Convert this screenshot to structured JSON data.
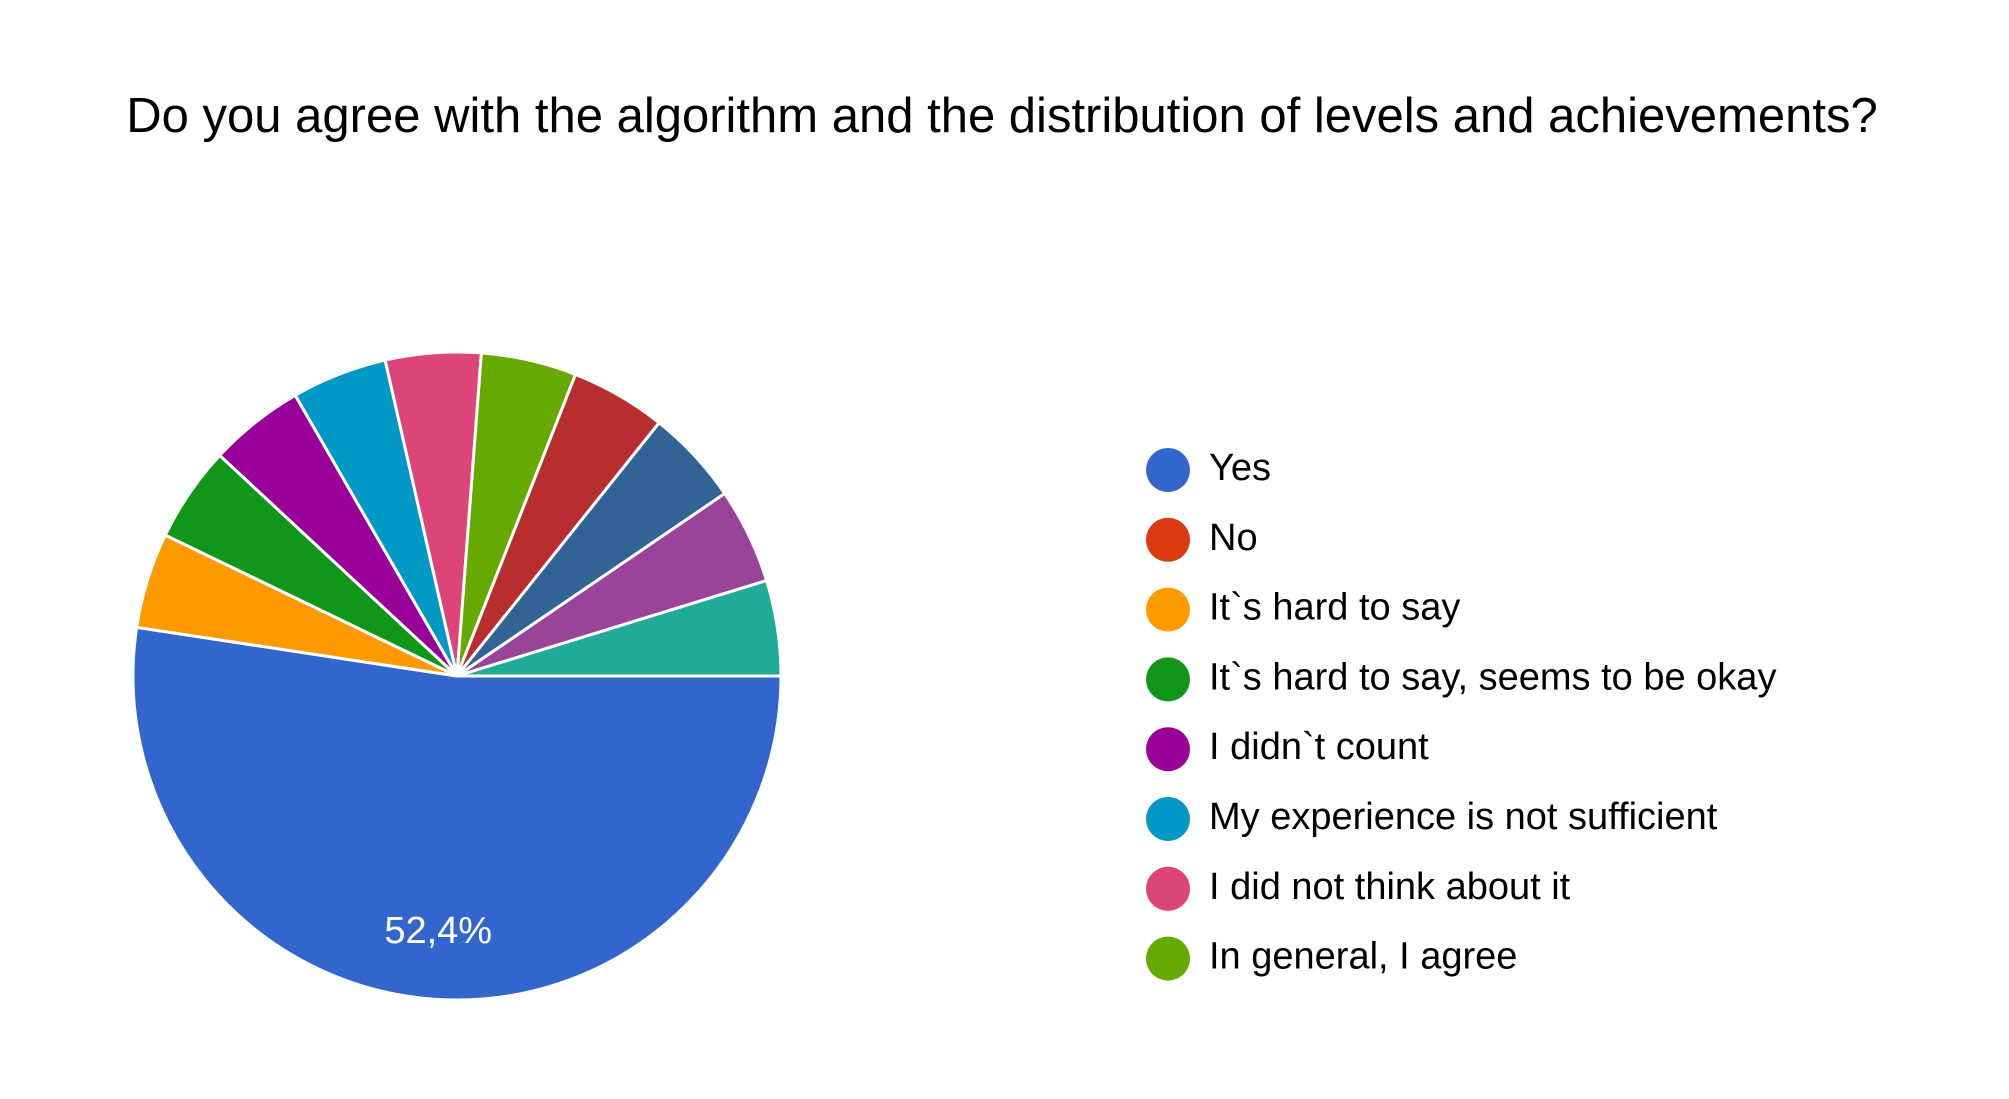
{
  "chart_data": {
    "type": "pie",
    "title": "Do you agree with the algorithm and the distribution of levels and achievements?",
    "categories": [
      "Yes",
      "No",
      "It`s hard to say",
      "It`s hard to say, seems to be okay",
      "I didn`t count",
      "My experience is not sufficient",
      "I did not think about it",
      "In general, I agree",
      null,
      null,
      null,
      null
    ],
    "values": [
      52.4,
      0,
      4.76,
      4.76,
      4.76,
      4.76,
      4.76,
      4.76,
      4.76,
      4.76,
      4.76,
      4.76
    ],
    "value_labels": [
      "52,4%",
      null,
      null,
      null,
      null,
      null,
      null,
      null,
      null,
      null,
      null,
      null
    ],
    "colors": [
      "#3366cc",
      "#dc3912",
      "#ff9900",
      "#109618",
      "#990099",
      "#0099c6",
      "#dd4477",
      "#66aa00",
      "#b82e2e",
      "#316395",
      "#994499",
      "#22aa99"
    ],
    "legend": "right"
  }
}
